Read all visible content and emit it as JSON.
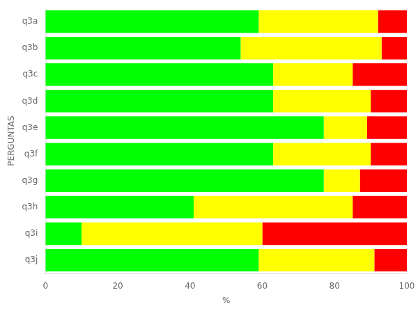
{
  "chart_data": {
    "type": "bar",
    "orientation": "horizontal",
    "stacked": true,
    "categories": [
      "q3a",
      "q3b",
      "q3c",
      "q3d",
      "q3e",
      "q3f",
      "q3g",
      "q3h",
      "q3i",
      "q3j"
    ],
    "series": [
      {
        "color": "#00FF00",
        "values": [
          59,
          54,
          63,
          63,
          77,
          63,
          77,
          41,
          10,
          59
        ]
      },
      {
        "color": "#FFFF00",
        "values": [
          33,
          39,
          22,
          27,
          12,
          27,
          10,
          44,
          50,
          32
        ]
      },
      {
        "color": "#FF0000",
        "values": [
          8,
          7,
          15,
          10,
          11,
          10,
          13,
          15,
          40,
          9
        ]
      }
    ],
    "xlabel": "%",
    "ylabel": "PERGUNTAS",
    "xlim": [
      0,
      100
    ],
    "xticks": [
      0,
      20,
      40,
      60,
      80,
      100
    ],
    "grid": false
  }
}
